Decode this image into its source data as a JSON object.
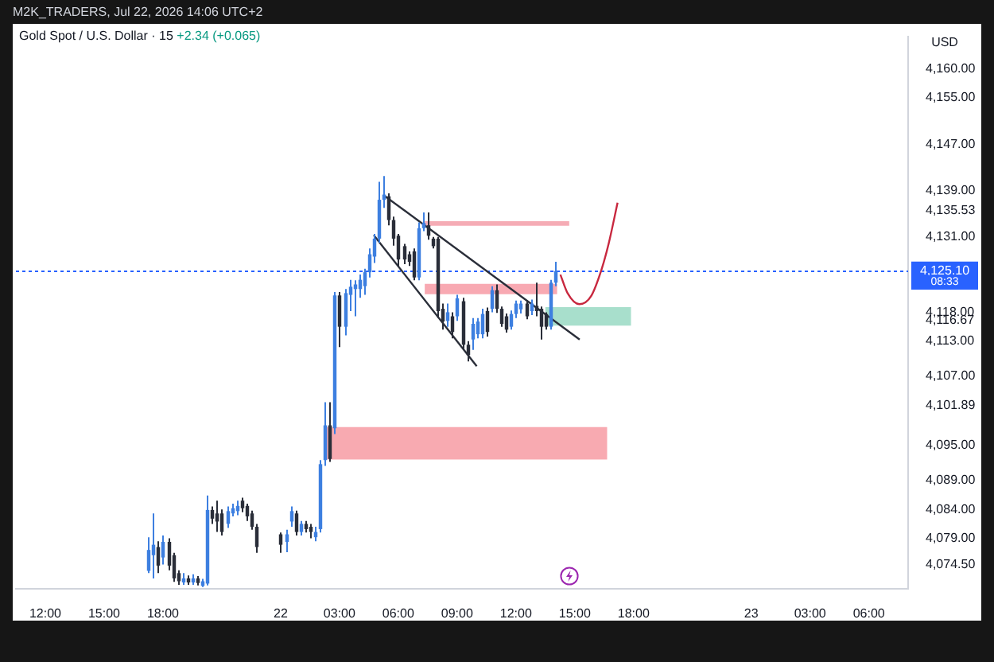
{
  "chart_data": {
    "type": "candlestick",
    "title": "Gold Spot / U.S. Dollar · 15",
    "ylabel": "USD",
    "annotations": [
      "M2K_TRADERS, Jul 22, 2026 14:06 UTC+2",
      "+2.34 (+0.065)",
      "08:33"
    ],
    "x": [
      "2026-07-21T17:15",
      "2026-07-21T17:30",
      "2026-07-21T17:45",
      "2026-07-21T18:00",
      "2026-07-21T18:15",
      "2026-07-21T18:30",
      "2026-07-21T18:45",
      "2026-07-21T19:00",
      "2026-07-21T19:15",
      "2026-07-21T19:30",
      "2026-07-21T19:45",
      "2026-07-21T20:00",
      "2026-07-21T20:15",
      "2026-07-21T20:30",
      "2026-07-21T20:45",
      "2026-07-21T21:00",
      "2026-07-21T21:15",
      "2026-07-21T21:30",
      "2026-07-21T21:45",
      "2026-07-21T22:00",
      "2026-07-21T22:15",
      "2026-07-21T22:30",
      "2026-07-21T22:45",
      "2026-07-22T00:00",
      "2026-07-22T00:15",
      "2026-07-22T00:30",
      "2026-07-22T00:45",
      "2026-07-22T01:00",
      "2026-07-22T01:15",
      "2026-07-22T01:30",
      "2026-07-22T01:45",
      "2026-07-22T02:00",
      "2026-07-22T02:15",
      "2026-07-22T02:30",
      "2026-07-22T02:45",
      "2026-07-22T03:00",
      "2026-07-22T03:15",
      "2026-07-22T03:30",
      "2026-07-22T03:45",
      "2026-07-22T04:00",
      "2026-07-22T04:15",
      "2026-07-22T04:30",
      "2026-07-22T04:45",
      "2026-07-22T05:00",
      "2026-07-22T05:15",
      "2026-07-22T05:30",
      "2026-07-22T05:45",
      "2026-07-22T06:00",
      "2026-07-22T06:15",
      "2026-07-22T06:30",
      "2026-07-22T06:45",
      "2026-07-22T07:00",
      "2026-07-22T07:15",
      "2026-07-22T07:30",
      "2026-07-22T07:45",
      "2026-07-22T08:00",
      "2026-07-22T08:15",
      "2026-07-22T08:30",
      "2026-07-22T08:45",
      "2026-07-22T09:00",
      "2026-07-22T09:15",
      "2026-07-22T09:30",
      "2026-07-22T09:45",
      "2026-07-22T10:00",
      "2026-07-22T10:15",
      "2026-07-22T10:30",
      "2026-07-22T10:45",
      "2026-07-22T11:00",
      "2026-07-22T11:15",
      "2026-07-22T11:30",
      "2026-07-22T11:45",
      "2026-07-22T12:00",
      "2026-07-22T12:15",
      "2026-07-22T12:30",
      "2026-07-22T12:45",
      "2026-07-22T13:00",
      "2026-07-22T13:15",
      "2026-07-22T13:30",
      "2026-07-22T13:45",
      "2026-07-22T14:00"
    ],
    "ohlc": [
      [
        4073.4,
        4079.2,
        4073.0,
        4077.0
      ],
      [
        4076.1,
        4083.3,
        4072.1,
        4077.9
      ],
      [
        4077.5,
        4078.5,
        4073.0,
        4074.3
      ],
      [
        4075.7,
        4079.5,
        4074.5,
        4078.4
      ],
      [
        4078.4,
        4079.0,
        4073.5,
        4074.3
      ],
      [
        4076.1,
        4076.5,
        4071.5,
        4072.1
      ],
      [
        4073.0,
        4073.5,
        4071.0,
        4071.6
      ],
      [
        4071.4,
        4073.0,
        4071.0,
        4072.1
      ],
      [
        4072.1,
        4072.6,
        4071.0,
        4071.4
      ],
      [
        4071.4,
        4072.8,
        4071.0,
        4072.1
      ],
      [
        4072.1,
        4072.5,
        4070.9,
        4071.3
      ],
      [
        4070.8,
        4072.0,
        4070.6,
        4071.6
      ],
      [
        4071.2,
        4086.4,
        4070.9,
        4083.9
      ],
      [
        4083.9,
        4084.5,
        4081.5,
        4082.4
      ],
      [
        4083.3,
        4085.5,
        4080.1,
        4081.9
      ],
      [
        4083.3,
        4084.0,
        4079.5,
        4080.1
      ],
      [
        4081.5,
        4084.5,
        4080.8,
        4083.7
      ],
      [
        4083.3,
        4085.0,
        4082.8,
        4084.2
      ],
      [
        4083.7,
        4085.5,
        4083.0,
        4084.6
      ],
      [
        4085.5,
        4086.0,
        4083.5,
        4084.2
      ],
      [
        4084.6,
        4085.0,
        4082.0,
        4082.8
      ],
      [
        4083.3,
        4083.8,
        4080.5,
        4081.0
      ],
      [
        4081.0,
        4081.5,
        4076.5,
        4077.5
      ],
      [
        4079.7,
        4080.0,
        4076.5,
        4077.9
      ],
      [
        4078.4,
        4080.5,
        4076.6,
        4079.7
      ],
      [
        4081.9,
        4084.5,
        4081.0,
        4083.7
      ],
      [
        4083.3,
        4083.8,
        4079.5,
        4080.1
      ],
      [
        4080.1,
        4082.0,
        4079.5,
        4081.5
      ],
      [
        4081.5,
        4082.0,
        4080.0,
        4080.6
      ],
      [
        4081.0,
        4081.5,
        4079.0,
        4080.1
      ],
      [
        4079.2,
        4081.0,
        4078.5,
        4080.1
      ],
      [
        4080.6,
        4092.5,
        4080.0,
        4091.8
      ],
      [
        4092.5,
        4102.5,
        4091.5,
        4098.5
      ],
      [
        4098.5,
        4102.5,
        4092.2,
        4092.7
      ],
      [
        4098.0,
        4121.5,
        4097.0,
        4120.9
      ],
      [
        4120.9,
        4121.5,
        4112.0,
        4115.5
      ],
      [
        4115.5,
        4122.0,
        4114.0,
        4121.3
      ],
      [
        4121.0,
        4123.6,
        4118.2,
        4122.4
      ],
      [
        4122.0,
        4123.5,
        4117.3,
        4122.8
      ],
      [
        4122.0,
        4124.5,
        4120.5,
        4123.6
      ],
      [
        4122.5,
        4125.5,
        4121.0,
        4124.9
      ],
      [
        4124.9,
        4129.0,
        4124.0,
        4128.0
      ],
      [
        4127.6,
        4131.5,
        4126.5,
        4130.7
      ],
      [
        4130.7,
        4140.5,
        4130.0,
        4137.4
      ],
      [
        4137.4,
        4141.5,
        4136.0,
        4138.3
      ],
      [
        4138.0,
        4138.5,
        4133.0,
        4133.9
      ],
      [
        4133.9,
        4134.5,
        4129.5,
        4130.7
      ],
      [
        4131.2,
        4131.5,
        4126.0,
        4127.1
      ],
      [
        4129.4,
        4129.8,
        4126.3,
        4127.1
      ],
      [
        4128.0,
        4128.5,
        4126.0,
        4126.7
      ],
      [
        4128.5,
        4129.0,
        4123.5,
        4124.0
      ],
      [
        4124.0,
        4133.5,
        4123.5,
        4132.5
      ],
      [
        4132.5,
        4135.2,
        4132.0,
        4133.4
      ],
      [
        4133.0,
        4135.2,
        4130.5,
        4131.2
      ],
      [
        4130.7,
        4131.0,
        4129.0,
        4129.4
      ],
      [
        4130.7,
        4131.0,
        4117.0,
        4118.2
      ],
      [
        4118.6,
        4119.5,
        4115.0,
        4116.4
      ],
      [
        4116.5,
        4119.5,
        4115.5,
        4118.0
      ],
      [
        4117.3,
        4118.0,
        4113.5,
        4114.6
      ],
      [
        4117.3,
        4121.0,
        4116.5,
        4120.4
      ],
      [
        4119.9,
        4120.5,
        4111.5,
        4112.4
      ],
      [
        4112.4,
        4113.0,
        4109.5,
        4110.6
      ],
      [
        4113.3,
        4117.0,
        4111.5,
        4116.0
      ],
      [
        4114.2,
        4117.0,
        4113.5,
        4116.4
      ],
      [
        4114.2,
        4118.6,
        4113.5,
        4117.7
      ],
      [
        4118.2,
        4118.8,
        4113.8,
        4114.6
      ],
      [
        4118.6,
        4122.5,
        4118.0,
        4121.8
      ],
      [
        4121.8,
        4122.8,
        4117.9,
        4118.6
      ],
      [
        4118.6,
        4119.0,
        4115.5,
        4116.0
      ],
      [
        4117.3,
        4117.8,
        4114.5,
        4115.0
      ],
      [
        4115.5,
        4118.3,
        4115.0,
        4117.7
      ],
      [
        4117.7,
        4120.0,
        4117.0,
        4119.5
      ],
      [
        4118.5,
        4120.0,
        4117.8,
        4119.5
      ],
      [
        4119.5,
        4120.0,
        4116.8,
        4117.3
      ],
      [
        4118.2,
        4120.2,
        4117.5,
        4119.5
      ],
      [
        4119.1,
        4123.1,
        4117.3,
        4118.2
      ],
      [
        4118.6,
        4119.0,
        4113.3,
        4115.5
      ],
      [
        4117.7,
        4118.0,
        4115.0,
        4115.5
      ],
      [
        4115.5,
        4123.6,
        4115.0,
        4123.1
      ],
      [
        4123.1,
        4126.7,
        4122.5,
        4125.1
      ]
    ],
    "series": [
      {
        "type": "area",
        "color": "#f7a1a8",
        "x": [
          "2026-07-22T02:16",
          "2026-07-22T16:39"
        ],
        "values": [
          null,
          null
        ],
        "upper": [
          4098.2,
          4098.2
        ],
        "lower": [
          4092.6,
          4092.6
        ]
      },
      {
        "type": "area",
        "color": "#f4a3ad",
        "x": [
          "2026-07-22T07:21",
          "2026-07-22T14:43"
        ],
        "values": [
          null,
          null
        ],
        "upper": [
          4133.7,
          4133.7
        ],
        "lower": [
          4132.9,
          4132.9
        ]
      },
      {
        "type": "area",
        "color": "#f7a0aa",
        "x": [
          "2026-07-22T07:21",
          "2026-07-22T14:06"
        ],
        "values": [
          null,
          null
        ],
        "upper": [
          4122.9,
          4122.9
        ],
        "lower": [
          4121.1,
          4121.1
        ]
      },
      {
        "type": "area",
        "color": "#9fdcc6",
        "x": [
          "2026-07-22T13:30",
          "2026-07-22T17:52"
        ],
        "values": [
          null,
          null
        ],
        "upper": [
          4118.9,
          4118.9
        ],
        "lower": [
          4115.7,
          4115.7
        ]
      },
      {
        "type": "line",
        "color": "#2a2e39",
        "x": [
          "2026-07-22T05:15",
          "2026-07-22T15:15"
        ],
        "values": [
          4138.2,
          4113.3
        ]
      },
      {
        "type": "line",
        "color": "#2a2e39",
        "x": [
          "2026-07-22T04:45",
          "2026-07-22T10:00"
        ],
        "values": [
          4131.3,
          4108.7
        ]
      },
      {
        "type": "line",
        "color": "#c8283f",
        "x": [
          "2026-07-22T14:16",
          "2026-07-22T14:38",
          "2026-07-22T15:14",
          "2026-07-22T15:50",
          "2026-07-22T16:22",
          "2026-07-22T16:44",
          "2026-07-22T17:11"
        ],
        "values": [
          4124.5,
          4121.3,
          4119.4,
          4120.8,
          4125.4,
          4129.9,
          4136.9
        ]
      }
    ],
    "ref_lines": [
      {
        "axis": "y",
        "value": 4125.1,
        "label": "4,125.10",
        "color": "#2962ff",
        "line_style": "dotted"
      }
    ],
    "marker": "none",
    "xlim": [
      "2026-07-21T10:30",
      "2026-07-23T08:00"
    ],
    "xticks": [
      {
        "value": "2026-07-21T12:00",
        "label": "12:00"
      },
      {
        "value": "2026-07-21T15:00",
        "label": "15:00"
      },
      {
        "value": "2026-07-21T18:00",
        "label": "18:00"
      },
      {
        "value": "2026-07-22T00:00",
        "label": "22"
      },
      {
        "value": "2026-07-22T03:00",
        "label": "03:00"
      },
      {
        "value": "2026-07-22T06:00",
        "label": "06:00"
      },
      {
        "value": "2026-07-22T09:00",
        "label": "09:00"
      },
      {
        "value": "2026-07-22T12:00",
        "label": "12:00"
      },
      {
        "value": "2026-07-22T15:00",
        "label": "15:00"
      },
      {
        "value": "2026-07-22T18:00",
        "label": "18:00"
      },
      {
        "value": "2026-07-23T00:00",
        "label": "23"
      },
      {
        "value": "2026-07-23T03:00",
        "label": "03:00"
      },
      {
        "value": "2026-07-23T06:00",
        "label": "06:00"
      }
    ],
    "ylim": [
      4070.3,
      4165.6
    ],
    "yticks": [
      {
        "value": 4074.5,
        "label": "4,074.50"
      },
      {
        "value": 4079,
        "label": "4,079.00"
      },
      {
        "value": 4084,
        "label": "4,084.00"
      },
      {
        "value": 4089,
        "label": "4,089.00"
      },
      {
        "value": 4095,
        "label": "4,095.00"
      },
      {
        "value": 4101.89,
        "label": "4,101.89"
      },
      {
        "value": 4107,
        "label": "4,107.00"
      },
      {
        "value": 4113,
        "label": "4,113.00"
      },
      {
        "value": 4116.67,
        "label": "4,116.67"
      },
      {
        "value": 4118,
        "label": "4,118.00"
      },
      {
        "value": 4131,
        "label": "4,131.00"
      },
      {
        "value": 4135.53,
        "label": "4,135.53"
      },
      {
        "value": 4139,
        "label": "4,139.00"
      },
      {
        "value": 4147,
        "label": "4,147.00"
      },
      {
        "value": 4155,
        "label": "4,155.00"
      },
      {
        "value": 4160,
        "label": "4,160.00"
      }
    ]
  }
}
